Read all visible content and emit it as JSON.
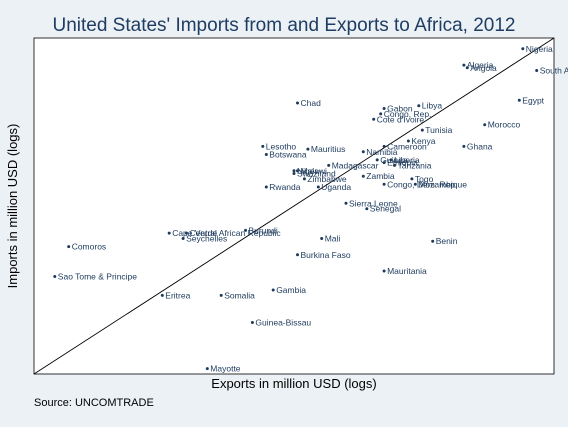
{
  "chart_data": {
    "type": "scatter",
    "title": "United States' Imports from and Exports to Africa, 2012",
    "xlabel": "Exports in million USD (logs)",
    "ylabel": "Imports in million USD (logs)",
    "source": "Source:  UNCOMTRADE",
    "x_scale": "log",
    "y_scale": "log",
    "reference_line": "45-degree line (imports = exports)",
    "grid": false,
    "points": [
      {
        "label": "Nigeria",
        "x": 5.6,
        "y": 9.0
      },
      {
        "label": "South Africa",
        "x": 6.0,
        "y": 8.2
      },
      {
        "label": "Algeria",
        "x": 3.9,
        "y": 8.4
      },
      {
        "label": "Angola",
        "x": 4.0,
        "y": 8.3
      },
      {
        "label": "Egypt",
        "x": 5.5,
        "y": 7.1
      },
      {
        "label": "Chad",
        "x": -0.9,
        "y": 7.0
      },
      {
        "label": "Libya",
        "x": 2.6,
        "y": 6.9
      },
      {
        "label": "Gabon",
        "x": 1.6,
        "y": 6.8
      },
      {
        "label": "Congo, Rep.",
        "x": 1.5,
        "y": 6.6
      },
      {
        "label": "Cote d'Ivoire",
        "x": 1.3,
        "y": 6.4
      },
      {
        "label": "Morocco",
        "x": 4.5,
        "y": 6.2
      },
      {
        "label": "Tunisia",
        "x": 2.7,
        "y": 6.0
      },
      {
        "label": "Kenya",
        "x": 2.3,
        "y": 5.6
      },
      {
        "label": "Cameroon",
        "x": 1.6,
        "y": 5.4
      },
      {
        "label": "Ghana",
        "x": 3.9,
        "y": 5.4
      },
      {
        "label": "Namibia",
        "x": 1.0,
        "y": 5.2
      },
      {
        "label": "Mauritius",
        "x": -0.6,
        "y": 5.3
      },
      {
        "label": "Lesotho",
        "x": -1.9,
        "y": 5.4
      },
      {
        "label": "Botswana",
        "x": -1.8,
        "y": 5.1
      },
      {
        "label": "Guinea",
        "x": 1.4,
        "y": 4.9
      },
      {
        "label": "Liberia",
        "x": 1.8,
        "y": 4.9
      },
      {
        "label": "Ethiopia",
        "x": 1.6,
        "y": 4.8
      },
      {
        "label": "Tanzania",
        "x": 1.9,
        "y": 4.7
      },
      {
        "label": "Madagascar",
        "x": 0.0,
        "y": 4.7
      },
      {
        "label": "Malawi",
        "x": -0.9,
        "y": 4.5
      },
      {
        "label": "Niger",
        "x": -1.0,
        "y": 4.5
      },
      {
        "label": "Swaziland",
        "x": -1.0,
        "y": 4.4
      },
      {
        "label": "Zimbabwe",
        "x": -0.7,
        "y": 4.2
      },
      {
        "label": "Zambia",
        "x": 1.0,
        "y": 4.3
      },
      {
        "label": "Togo",
        "x": 2.4,
        "y": 4.2
      },
      {
        "label": "Congo, Dem. Rep.",
        "x": 1.6,
        "y": 4.0
      },
      {
        "label": "Mozambique",
        "x": 2.5,
        "y": 4.0
      },
      {
        "label": "Rwanda",
        "x": -1.8,
        "y": 3.9
      },
      {
        "label": "Uganda",
        "x": -0.3,
        "y": 3.9
      },
      {
        "label": "Sierra Leone",
        "x": 0.5,
        "y": 3.3
      },
      {
        "label": "Senegal",
        "x": 1.1,
        "y": 3.1
      },
      {
        "label": "Burundi",
        "x": -2.4,
        "y": 2.3
      },
      {
        "label": "Cape Verde",
        "x": -4.6,
        "y": 2.2
      },
      {
        "label": "Central African Republic",
        "x": -4.1,
        "y": 2.2
      },
      {
        "label": "Seychelles",
        "x": -4.2,
        "y": 2.0
      },
      {
        "label": "Mali",
        "x": -0.2,
        "y": 2.0
      },
      {
        "label": "Benin",
        "x": 3.0,
        "y": 1.9
      },
      {
        "label": "Comoros",
        "x": -7.5,
        "y": 1.7
      },
      {
        "label": "Burkina Faso",
        "x": -0.9,
        "y": 1.4
      },
      {
        "label": "Mauritania",
        "x": 1.6,
        "y": 0.8
      },
      {
        "label": "Sao Tome & Principe",
        "x": -7.9,
        "y": 0.6
      },
      {
        "label": "Gambia",
        "x": -1.6,
        "y": 0.1
      },
      {
        "label": "Eritrea",
        "x": -4.8,
        "y": -0.1
      },
      {
        "label": "Somalia",
        "x": -3.1,
        "y": -0.1
      },
      {
        "label": "Guinea-Bissau",
        "x": -2.2,
        "y": -1.1
      },
      {
        "label": "Mayotte",
        "x": -3.5,
        "y": -2.8
      }
    ]
  }
}
